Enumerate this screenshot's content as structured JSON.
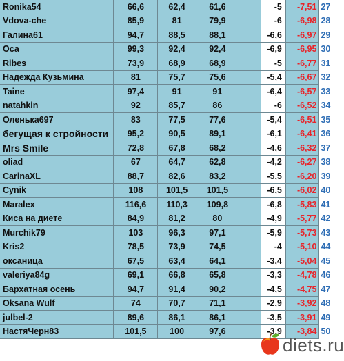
{
  "table": {
    "rows": [
      {
        "name": "Ronika54",
        "v1": "66,6",
        "v2": "62,4",
        "v3": "61,6",
        "d1": "-5",
        "d2": "-7,51",
        "rank": "27"
      },
      {
        "name": "Vdova-che",
        "v1": "85,9",
        "v2": "81",
        "v3": "79,9",
        "d1": "-6",
        "d2": "-6,98",
        "rank": "28"
      },
      {
        "name": "Галина61",
        "v1": "94,7",
        "v2": "88,5",
        "v3": "88,1",
        "d1": "-6,6",
        "d2": "-6,97",
        "rank": "29"
      },
      {
        "name": "Оса",
        "v1": "99,3",
        "v2": "92,4",
        "v3": "92,4",
        "d1": "-6,9",
        "d2": "-6,95",
        "rank": "30"
      },
      {
        "name": "Ribes",
        "v1": "73,9",
        "v2": "68,9",
        "v3": "68,9",
        "d1": "-5",
        "d2": "-6,77",
        "rank": "31"
      },
      {
        "name": "Надежда Кузьмина",
        "v1": "81",
        "v2": "75,7",
        "v3": "75,6",
        "d1": "-5,4",
        "d2": "-6,67",
        "rank": "32"
      },
      {
        "name": "Taine",
        "v1": "97,4",
        "v2": "91",
        "v3": "91",
        "d1": "-6,4",
        "d2": "-6,57",
        "rank": "33"
      },
      {
        "name": "natahkin",
        "v1": "92",
        "v2": "85,7",
        "v3": "86",
        "d1": "-6",
        "d2": "-6,52",
        "rank": "34"
      },
      {
        "name": "Оленька697",
        "v1": "83",
        "v2": "77,5",
        "v3": "77,6",
        "d1": "-5,4",
        "d2": "-6,51",
        "rank": "35"
      },
      {
        "name": "бегущая к стройности",
        "v1": "95,2",
        "v2": "90,5",
        "v3": "89,1",
        "d1": "-6,1",
        "d2": "-6,41",
        "rank": "36",
        "big": true
      },
      {
        "name": "Mrs Smile",
        "v1": "72,8",
        "v2": "67,8",
        "v3": "68,2",
        "d1": "-4,6",
        "d2": "-6,32",
        "rank": "37",
        "big": true
      },
      {
        "name": "oliad",
        "v1": "67",
        "v2": "64,7",
        "v3": "62,8",
        "d1": "-4,2",
        "d2": "-6,27",
        "rank": "38"
      },
      {
        "name": "CarinaXL",
        "v1": "88,7",
        "v2": "82,6",
        "v3": "83,2",
        "d1": "-5,5",
        "d2": "-6,20",
        "rank": "39"
      },
      {
        "name": "Cynik",
        "v1": "108",
        "v2": "101,5",
        "v3": "101,5",
        "d1": "-6,5",
        "d2": "-6,02",
        "rank": "40"
      },
      {
        "name": "Maralex",
        "v1": "116,6",
        "v2": "110,3",
        "v3": "109,8",
        "d1": "-6,8",
        "d2": "-5,83",
        "rank": "41"
      },
      {
        "name": "Киса на диете",
        "v1": "84,9",
        "v2": "81,2",
        "v3": "80",
        "d1": "-4,9",
        "d2": "-5,77",
        "rank": "42"
      },
      {
        "name": "Murchik79",
        "v1": "103",
        "v2": "96,3",
        "v3": "97,1",
        "d1": "-5,9",
        "d2": "-5,73",
        "rank": "43"
      },
      {
        "name": "Kris2",
        "v1": "78,5",
        "v2": "73,9",
        "v3": "74,5",
        "d1": "-4",
        "d2": "-5,10",
        "rank": "44"
      },
      {
        "name": "оксаница",
        "v1": "67,5",
        "v2": "63,4",
        "v3": "64,1",
        "d1": "-3,4",
        "d2": "-5,04",
        "rank": "45"
      },
      {
        "name": "valeriya84g",
        "v1": "69,1",
        "v2": "66,8",
        "v3": "65,8",
        "d1": "-3,3",
        "d2": "-4,78",
        "rank": "46"
      },
      {
        "name": "Бархатная осень",
        "v1": "94,7",
        "v2": "91,4",
        "v3": "90,2",
        "d1": "-4,5",
        "d2": "-4,75",
        "rank": "47"
      },
      {
        "name": "Oksana Wulf",
        "v1": "74",
        "v2": "70,7",
        "v3": "71,1",
        "d1": "-2,9",
        "d2": "-3,92",
        "rank": "48"
      },
      {
        "name": "julbel-2",
        "v1": "89,6",
        "v2": "86,1",
        "v3": "86,1",
        "d1": "-3,5",
        "d2": "-3,91",
        "rank": "49"
      },
      {
        "name": "НастяЧерн83",
        "v1": "101,5",
        "v2": "100",
        "v3": "97,6",
        "d1": "-3,9",
        "d2": "-3,84",
        "rank": "50"
      }
    ]
  },
  "logo": {
    "text": "diets.ru",
    "icon": "apple-icon"
  },
  "colors": {
    "cell_bg": "#99ccda",
    "negative_red": "#e8242a",
    "rank_blue": "#2f6eb5"
  }
}
